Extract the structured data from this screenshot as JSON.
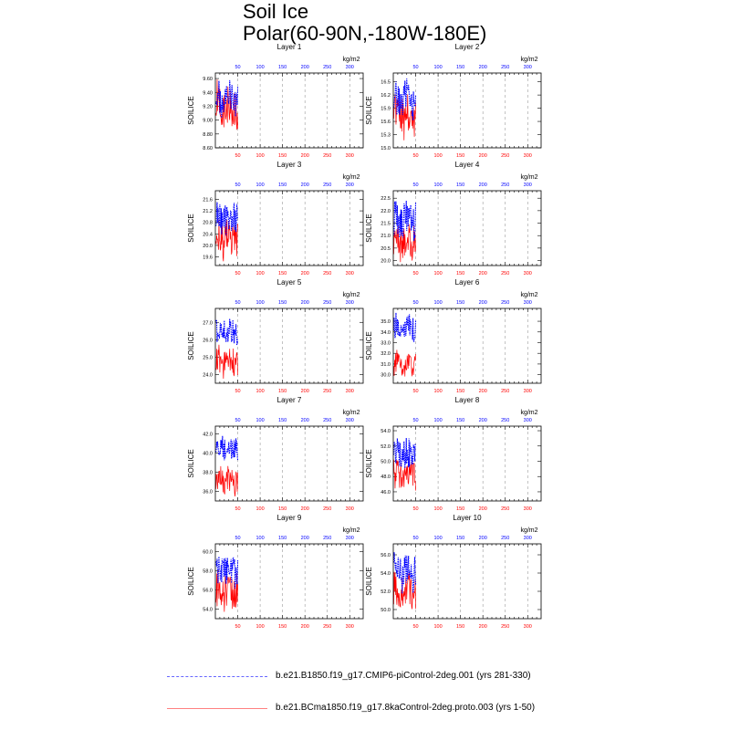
{
  "title": {
    "line1": "Soil Ice",
    "line2": "Polar(60-90N,-180W-180E)"
  },
  "legend": {
    "series1": "b.e21.B1850.f19_g17.CMIP6-piControl-2deg.001 (yrs 281-330)",
    "series2": "b.e21.BCma1850.f19_g17.8kaControl-2deg.proto.003 (yrs 1-50)"
  },
  "colors": {
    "series1": "#0000ff",
    "series2": "#ff0000"
  },
  "chart_data": {
    "type": "line",
    "ylabel": "SOILICE",
    "units": "kg/m2",
    "x_ticks": [
      50,
      100,
      150,
      200,
      250,
      300
    ],
    "xlim": [
      0,
      330
    ],
    "panels": [
      {
        "title": "Layer 1",
        "ylim": [
          8.6,
          9.68
        ],
        "yticks": [
          8.6,
          8.8,
          9.0,
          9.2,
          9.4,
          9.6
        ],
        "yticklabels": [
          "8.60",
          "8.80",
          "9.00",
          "9.20",
          "9.40",
          "9.60"
        ],
        "blue_range": [
          9.0,
          9.6
        ],
        "red_range": [
          8.75,
          9.6
        ]
      },
      {
        "title": "Layer 2",
        "ylim": [
          15.0,
          16.7
        ],
        "yticks": [
          15.0,
          15.3,
          15.6,
          15.9,
          16.2,
          16.5
        ],
        "yticklabels": [
          "15.0",
          "15.3",
          "15.6",
          "15.9",
          "16.2",
          "16.5"
        ],
        "blue_range": [
          15.6,
          16.6
        ],
        "red_range": [
          15.1,
          16.3
        ]
      },
      {
        "title": "Layer 3",
        "ylim": [
          19.3,
          21.9
        ],
        "yticks": [
          19.6,
          20.0,
          20.4,
          20.8,
          21.2,
          21.6
        ],
        "yticklabels": [
          "19.6",
          "20.0",
          "20.4",
          "20.8",
          "21.2",
          "21.6"
        ],
        "blue_range": [
          20.2,
          21.7
        ],
        "red_range": [
          19.4,
          21.0
        ]
      },
      {
        "title": "Layer 4",
        "ylim": [
          19.8,
          22.8
        ],
        "yticks": [
          20.0,
          20.5,
          21.0,
          21.5,
          22.0,
          22.5
        ],
        "yticklabels": [
          "20.0",
          "20.5",
          "21.0",
          "21.5",
          "22.0",
          "22.5"
        ],
        "blue_range": [
          20.7,
          22.6
        ],
        "red_range": [
          19.9,
          21.7
        ]
      },
      {
        "title": "Layer 5",
        "ylim": [
          23.5,
          27.8
        ],
        "yticks": [
          24.0,
          25.0,
          26.0,
          27.0
        ],
        "yticklabels": [
          "24.0",
          "25.0",
          "26.0",
          "27.0"
        ],
        "blue_range": [
          25.6,
          27.5
        ],
        "red_range": [
          23.7,
          25.8
        ]
      },
      {
        "title": "Layer 6",
        "ylim": [
          29.2,
          36.2
        ],
        "yticks": [
          30.0,
          31.0,
          32.0,
          33.0,
          34.0,
          35.0
        ],
        "yticklabels": [
          "30.0",
          "31.0",
          "32.0",
          "33.0",
          "34.0",
          "35.0"
        ],
        "blue_range": [
          33.0,
          35.8
        ],
        "red_range": [
          29.5,
          32.4
        ]
      },
      {
        "title": "Layer 7",
        "ylim": [
          35.0,
          42.8
        ],
        "yticks": [
          36.0,
          38.0,
          40.0,
          42.0
        ],
        "yticklabels": [
          "36.0",
          "38.0",
          "40.0",
          "42.0"
        ],
        "blue_range": [
          39.0,
          42.3
        ],
        "red_range": [
          35.3,
          39.0
        ]
      },
      {
        "title": "Layer 8",
        "ylim": [
          44.8,
          54.6
        ],
        "yticks": [
          46.0,
          48.0,
          50.0,
          52.0,
          54.0
        ],
        "yticklabels": [
          "46.0",
          "48.0",
          "50.0",
          "52.0",
          "54.0"
        ],
        "blue_range": [
          48.5,
          53.6
        ],
        "red_range": [
          45.5,
          51.0
        ]
      },
      {
        "title": "Layer 9",
        "ylim": [
          53.0,
          60.8
        ],
        "yticks": [
          54.0,
          56.0,
          58.0,
          60.0
        ],
        "yticklabels": [
          "54.0",
          "56.0",
          "58.0",
          "60.0"
        ],
        "blue_range": [
          56.0,
          60.2
        ],
        "red_range": [
          53.5,
          58.5
        ]
      },
      {
        "title": "Layer 10",
        "ylim": [
          49.0,
          57.2
        ],
        "yticks": [
          50.0,
          52.0,
          54.0,
          56.0
        ],
        "yticklabels": [
          "50.0",
          "52.0",
          "54.0",
          "56.0"
        ],
        "blue_range": [
          51.5,
          56.6
        ],
        "red_range": [
          49.6,
          54.5
        ]
      }
    ]
  }
}
